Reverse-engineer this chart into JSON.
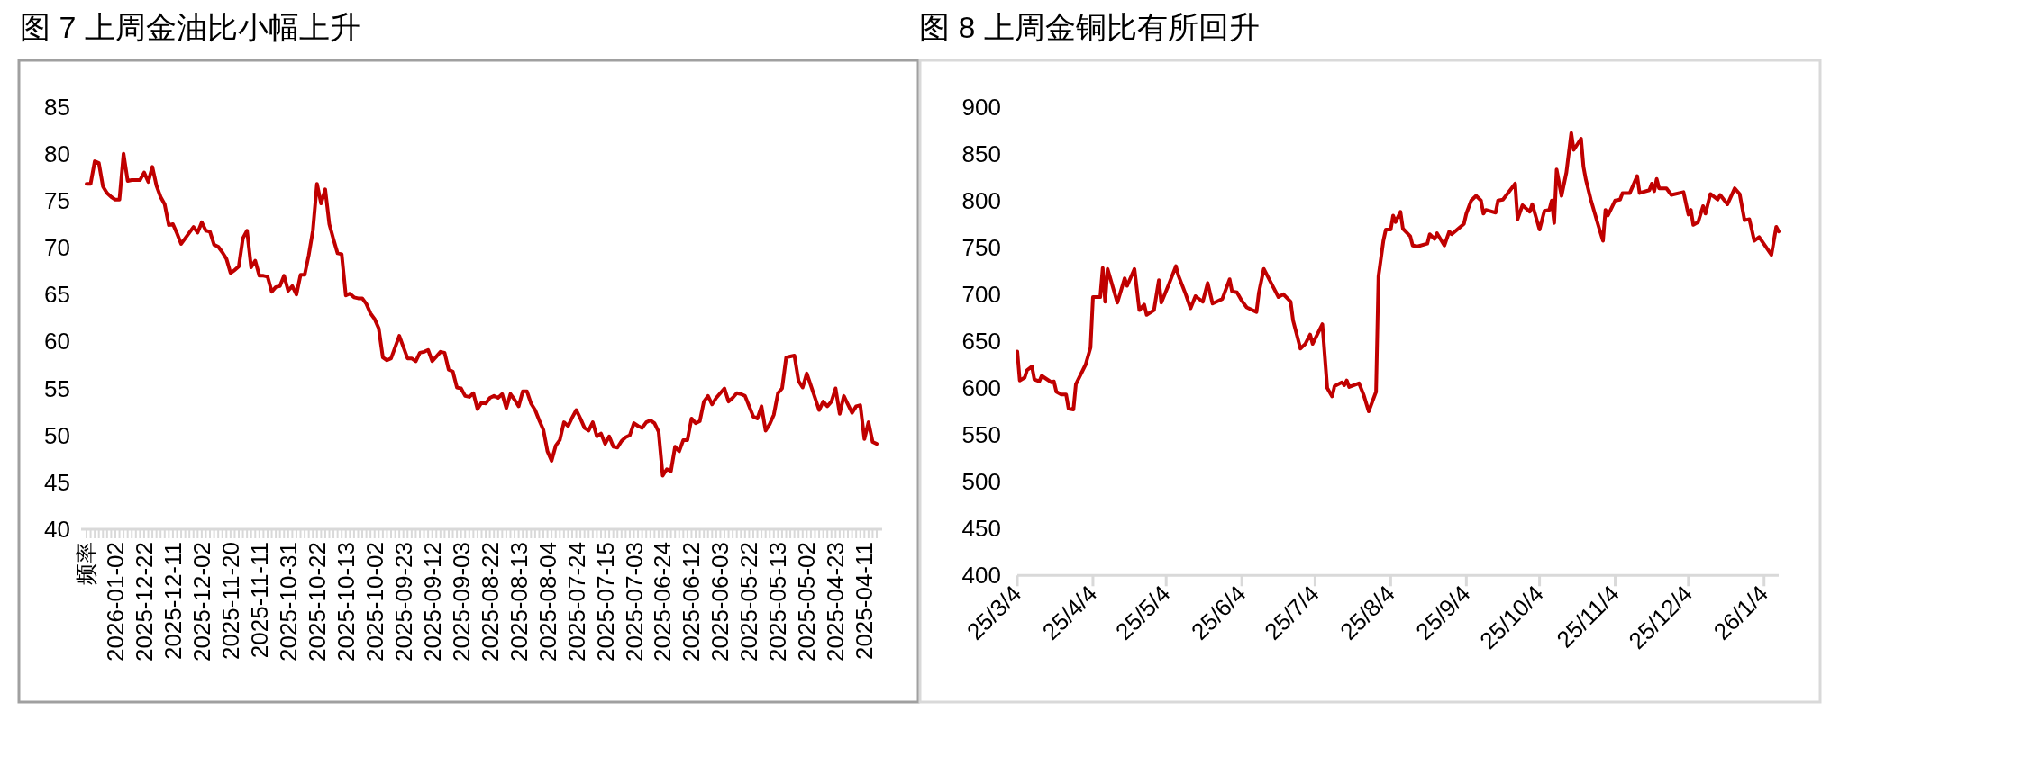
{
  "chart_data": [
    {
      "type": "line",
      "title": "图 7 上周金油比小幅上升",
      "annotations": [
        "频率"
      ],
      "color": "#c00000",
      "ylim": [
        40,
        85
      ],
      "yticks": [
        40,
        45,
        50,
        55,
        60,
        65,
        70,
        75,
        80,
        85
      ],
      "categories": [
        null,
        null,
        null,
        null,
        null,
        null,
        null,
        "2026-01-02",
        null,
        null,
        null,
        null,
        null,
        null,
        "2025-12-22",
        null,
        null,
        null,
        null,
        null,
        null,
        "2025-12-11",
        null,
        null,
        null,
        null,
        null,
        null,
        "2025-12-02",
        null,
        null,
        null,
        null,
        null,
        null,
        "2025-11-20",
        null,
        null,
        null,
        null,
        null,
        null,
        "2025-11-11",
        null,
        null,
        null,
        null,
        null,
        null,
        "2025-10-31",
        null,
        null,
        null,
        null,
        null,
        null,
        "2025-10-22",
        null,
        null,
        null,
        null,
        null,
        null,
        "2025-10-13",
        null,
        null,
        null,
        null,
        null,
        null,
        "2025-10-02",
        null,
        null,
        null,
        null,
        null,
        null,
        "2025-09-23",
        null,
        null,
        null,
        null,
        null,
        null,
        "2025-09-12",
        null,
        null,
        null,
        null,
        null,
        null,
        "2025-09-03",
        null,
        null,
        null,
        null,
        null,
        null,
        "2025-08-22",
        null,
        null,
        null,
        null,
        null,
        null,
        "2025-08-13",
        null,
        null,
        null,
        null,
        null,
        null,
        "2025-08-04",
        null,
        null,
        null,
        null,
        null,
        null,
        "2025-07-24",
        null,
        null,
        null,
        null,
        null,
        null,
        "2025-07-15",
        null,
        null,
        null,
        null,
        null,
        null,
        "2025-07-03",
        null,
        null,
        null,
        null,
        null,
        null,
        "2025-06-24",
        null,
        null,
        null,
        null,
        null,
        null,
        "2025-06-12",
        null,
        null,
        null,
        null,
        null,
        null,
        "2025-06-03",
        null,
        null,
        null,
        null,
        null,
        null,
        "2025-05-22",
        null,
        null,
        null,
        null,
        null,
        null,
        "2025-05-13",
        null,
        null,
        null,
        null,
        null,
        null,
        "2025-05-02",
        null,
        null,
        null,
        null,
        null,
        null,
        "2025-04-23",
        null,
        null,
        null,
        null,
        null,
        null,
        "2025-04-11",
        null,
        null,
        null
      ],
      "values": [
        76.8,
        76.8,
        79.2,
        79.0,
        76.5,
        75.8,
        75.4,
        75.1,
        75.1,
        80.0,
        77.1,
        77.2,
        77.2,
        77.2,
        78.0,
        77.0,
        78.6,
        76.6,
        75.4,
        74.6,
        72.4,
        72.5,
        71.5,
        70.4,
        71.0,
        71.6,
        72.2,
        71.6,
        72.7,
        71.8,
        71.7,
        70.3,
        70.1,
        69.5,
        68.8,
        67.3,
        67.6,
        68.0,
        71.0,
        71.8,
        67.9,
        68.6,
        67.0,
        67.0,
        66.9,
        65.3,
        65.8,
        65.9,
        67.0,
        65.4,
        65.9,
        65.0,
        67.1,
        67.1,
        69.2,
        71.8,
        76.8,
        74.7,
        76.2,
        72.5,
        70.9,
        69.4,
        69.3,
        64.9,
        65.1,
        64.7,
        64.6,
        64.6,
        64.0,
        63.0,
        62.4,
        61.4,
        58.3,
        58.0,
        58.2,
        59.4,
        60.6,
        59.4,
        58.2,
        58.2,
        57.9,
        58.8,
        58.9,
        59.1,
        57.9,
        58.4,
        58.9,
        58.8,
        57.0,
        56.8,
        55.1,
        55.0,
        54.2,
        54.1,
        54.5,
        52.8,
        53.5,
        53.4,
        54.0,
        54.2,
        54.0,
        54.4,
        52.9,
        54.4,
        53.8,
        53.1,
        54.7,
        54.7,
        53.4,
        52.7,
        51.6,
        50.6,
        48.3,
        47.3,
        48.9,
        49.5,
        51.4,
        51.0,
        51.9,
        52.7,
        51.8,
        50.8,
        50.5,
        51.4,
        49.9,
        50.2,
        49.1,
        49.9,
        48.8,
        48.7,
        49.4,
        49.8,
        50.0,
        51.3,
        51.0,
        50.8,
        51.4,
        51.6,
        51.3,
        50.4,
        45.7,
        46.4,
        46.2,
        48.8,
        48.3,
        49.5,
        49.5,
        51.8,
        51.3,
        51.5,
        53.6,
        54.2,
        53.3,
        54.0,
        54.5,
        55.0,
        53.6,
        54.0,
        54.5,
        54.4,
        54.2,
        53.1,
        52.0,
        51.8,
        53.1,
        50.5,
        51.2,
        52.2,
        54.5,
        55.0,
        58.3,
        58.4,
        58.5,
        55.8,
        55.1,
        56.6,
        55.3,
        54.0,
        52.7,
        53.6,
        53.1,
        53.6,
        55.0,
        52.3,
        54.2,
        53.3,
        52.4,
        53.1,
        53.2,
        49.6,
        51.4,
        49.3,
        49.1
      ]
    },
    {
      "type": "line",
      "title": "图 8 上周金铜比有所回升",
      "color": "#c00000",
      "ylim": [
        400,
        900
      ],
      "yticks": [
        400,
        450,
        500,
        550,
        600,
        650,
        700,
        750,
        800,
        850,
        900
      ],
      "xlim": [
        "2025-03-04",
        "2026-01-10"
      ],
      "xticks": [
        {
          "value": "2025-03-04",
          "label": "25/3/4"
        },
        {
          "value": "2025-04-04",
          "label": "25/4/4"
        },
        {
          "value": "2025-05-04",
          "label": "25/5/4"
        },
        {
          "value": "2025-06-04",
          "label": "25/6/4"
        },
        {
          "value": "2025-07-04",
          "label": "25/7/4"
        },
        {
          "value": "2025-08-04",
          "label": "25/8/4"
        },
        {
          "value": "2025-09-04",
          "label": "25/9/4"
        },
        {
          "value": "2025-10-04",
          "label": "25/10/4"
        },
        {
          "value": "2025-11-04",
          "label": "25/11/4"
        },
        {
          "value": "2025-12-04",
          "label": "25/12/4"
        },
        {
          "value": "2026-01-04",
          "label": "26/1/4"
        }
      ],
      "x": [
        "2025-03-04",
        "2025-03-05",
        "2025-03-07",
        "2025-03-08",
        "2025-03-10",
        "2025-03-11",
        "2025-03-13",
        "2025-03-14",
        "2025-03-18",
        "2025-03-19",
        "2025-03-20",
        "2025-03-22",
        "2025-03-24",
        "2025-03-25",
        "2025-03-27",
        "2025-03-28",
        "2025-04-01",
        "2025-04-03",
        "2025-04-04",
        "2025-04-07",
        "2025-04-08",
        "2025-04-09",
        "2025-04-10",
        "2025-04-14",
        "2025-04-17",
        "2025-04-18",
        "2025-04-21",
        "2025-04-23",
        "2025-04-25",
        "2025-04-26",
        "2025-04-29",
        "2025-05-01",
        "2025-05-02",
        "2025-05-05",
        "2025-05-08",
        "2025-05-09",
        "2025-05-12",
        "2025-05-14",
        "2025-05-16",
        "2025-05-19",
        "2025-05-21",
        "2025-05-23",
        "2025-05-27",
        "2025-05-30",
        "2025-05-31",
        "2025-06-02",
        "2025-06-04",
        "2025-06-06",
        "2025-06-10",
        "2025-06-11",
        "2025-06-13",
        "2025-06-16",
        "2025-06-17",
        "2025-06-19",
        "2025-06-21",
        "2025-06-24",
        "2025-06-25",
        "2025-06-28",
        "2025-06-30",
        "2025-07-02",
        "2025-07-03",
        "2025-07-07",
        "2025-07-09",
        "2025-07-11",
        "2025-07-12",
        "2025-07-15",
        "2025-07-16",
        "2025-07-17",
        "2025-07-18",
        "2025-07-22",
        "2025-07-24",
        "2025-07-26",
        "2025-07-29",
        "2025-07-30",
        "2025-08-01",
        "2025-08-02",
        "2025-08-04",
        "2025-08-05",
        "2025-08-06",
        "2025-08-08",
        "2025-08-09",
        "2025-08-12",
        "2025-08-13",
        "2025-08-15",
        "2025-08-19",
        "2025-08-20",
        "2025-08-22",
        "2025-08-23",
        "2025-08-26",
        "2025-08-28",
        "2025-08-29",
        "2025-09-03",
        "2025-09-04",
        "2025-09-06",
        "2025-09-08",
        "2025-09-10",
        "2025-09-11",
        "2025-09-12",
        "2025-09-16",
        "2025-09-17",
        "2025-09-19",
        "2025-09-24",
        "2025-09-25",
        "2025-09-27",
        "2025-09-30",
        "2025-10-01",
        "2025-10-02",
        "2025-10-04",
        "2025-10-06",
        "2025-10-08",
        "2025-10-09",
        "2025-10-10",
        "2025-10-11",
        "2025-10-13",
        "2025-10-15",
        "2025-10-17",
        "2025-10-18",
        "2025-10-21",
        "2025-10-22",
        "2025-10-23",
        "2025-10-25",
        "2025-10-28",
        "2025-10-30",
        "2025-10-31",
        "2025-11-01",
        "2025-11-04",
        "2025-11-06",
        "2025-11-07",
        "2025-11-10",
        "2025-11-13",
        "2025-11-14",
        "2025-11-18",
        "2025-11-19",
        "2025-11-20",
        "2025-11-21",
        "2025-11-22",
        "2025-11-25",
        "2025-11-27",
        "2025-12-02",
        "2025-12-04",
        "2025-12-05",
        "2025-12-06",
        "2025-12-08",
        "2025-12-10",
        "2025-12-11",
        "2025-12-13",
        "2025-12-16",
        "2025-12-17",
        "2025-12-20",
        "2025-12-23",
        "2025-12-25",
        "2025-12-27",
        "2025-12-29",
        "2025-12-31",
        "2026-01-02",
        "2026-01-07",
        "2026-01-09",
        "2026-01-10"
      ],
      "values": [
        639,
        608,
        611,
        619,
        623,
        609,
        607,
        613,
        606,
        607,
        596,
        593,
        593,
        578,
        577,
        604,
        625,
        643,
        697,
        697,
        728,
        692,
        727,
        691,
        717,
        709,
        727,
        683,
        689,
        678,
        683,
        715,
        691,
        710,
        730,
        720,
        700,
        685,
        698,
        692,
        712,
        690,
        695,
        716,
        703,
        702,
        693,
        686,
        681,
        702,
        727,
        712,
        707,
        697,
        700,
        692,
        672,
        642,
        647,
        657,
        647,
        668,
        600,
        591,
        602,
        606,
        603,
        608,
        601,
        605,
        592,
        575,
        596,
        719,
        757,
        769,
        769,
        784,
        777,
        788,
        770,
        762,
        752,
        751,
        754,
        764,
        759,
        765,
        752,
        767,
        764,
        775,
        786,
        800,
        805,
        800,
        786,
        790,
        787,
        800,
        801,
        818,
        780,
        795,
        788,
        796,
        787,
        769,
        789,
        790,
        800,
        776,
        833,
        805,
        830,
        872,
        854,
        866,
        836,
        822,
        801,
        774,
        757,
        790,
        784,
        800,
        801,
        808,
        808,
        826,
        808,
        811,
        818,
        810,
        823,
        813,
        813,
        806,
        809,
        785,
        790,
        774,
        777,
        794,
        786,
        807,
        801,
        806,
        796,
        813,
        807,
        779,
        780,
        757,
        761,
        742,
        772,
        767
      ]
    }
  ]
}
